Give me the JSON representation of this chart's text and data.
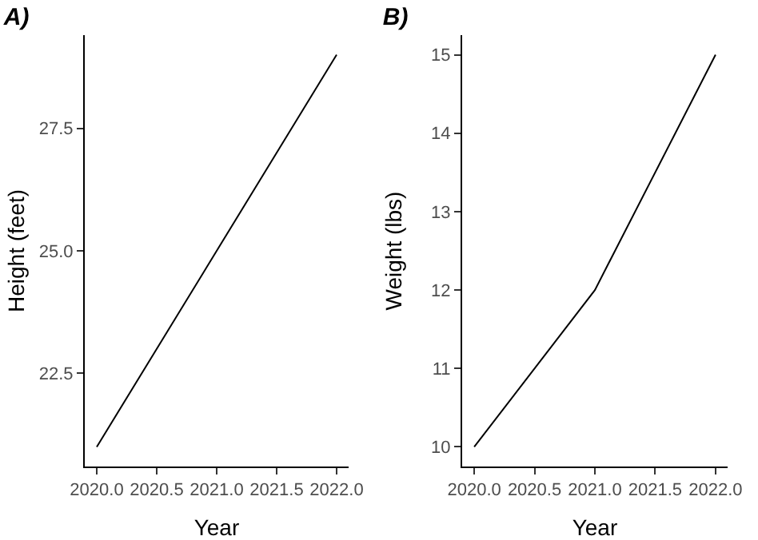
{
  "chart_data": [
    {
      "type": "line",
      "title": "A)",
      "xlabel": "Year",
      "ylabel": "Height (feet)",
      "x": [
        2020,
        2021,
        2022
      ],
      "values": [
        21,
        25,
        29
      ],
      "color": "#000000",
      "xlim": [
        2019.9,
        2022.1
      ],
      "ylim": [
        20.6,
        29.4
      ],
      "xticks": [
        {
          "value": 2020,
          "label": "2020.0"
        },
        {
          "value": 2020.5,
          "label": "2020.5"
        },
        {
          "value": 2021,
          "label": "2021.0"
        },
        {
          "value": 2021.5,
          "label": "2021.5"
        },
        {
          "value": 2022,
          "label": "2022.0"
        }
      ],
      "yticks": [
        22.5,
        {
          "value": 25,
          "label": "25.0"
        },
        27.5
      ],
      "grid": false,
      "marker": "none",
      "line_style": "solid"
    },
    {
      "type": "line",
      "title": "B)",
      "xlabel": "Year",
      "ylabel": "Weight (lbs)",
      "x": [
        2020,
        2021,
        2022
      ],
      "values": [
        10,
        12,
        15
      ],
      "color": "#000000",
      "xlim": [
        2019.9,
        2022.1
      ],
      "ylim": [
        9.75,
        15.25
      ],
      "xticks": [
        {
          "value": 2020,
          "label": "2020.0"
        },
        {
          "value": 2020.5,
          "label": "2020.5"
        },
        {
          "value": 2021,
          "label": "2021.0"
        },
        {
          "value": 2021.5,
          "label": "2021.5"
        },
        {
          "value": 2022,
          "label": "2022.0"
        }
      ],
      "yticks": [
        10,
        11,
        12,
        13,
        14,
        15
      ],
      "grid": false,
      "marker": "none",
      "line_style": "solid"
    }
  ]
}
